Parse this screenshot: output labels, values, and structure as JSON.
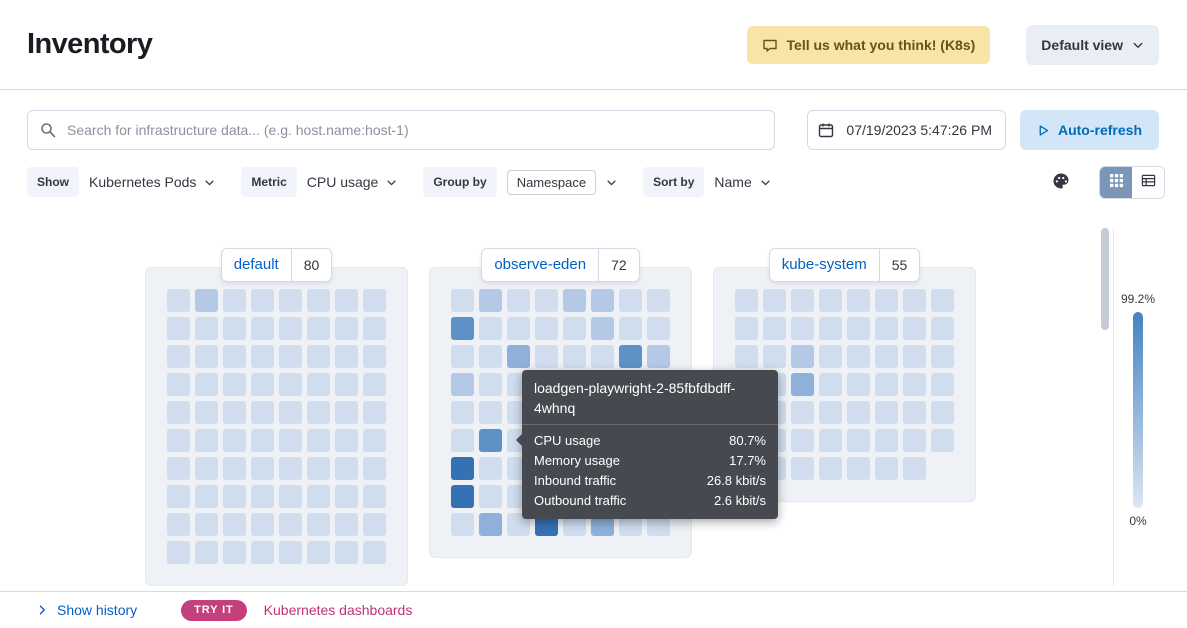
{
  "header": {
    "title": "Inventory",
    "feedback_button": "Tell us what you think! (K8s)",
    "view_button": "Default view"
  },
  "search": {
    "placeholder": "Search for infrastructure data... (e.g. host.name:host-1)",
    "datetime": "07/19/2023 5:47:26 PM",
    "auto_refresh_label": "Auto-refresh"
  },
  "filters": {
    "show_label": "Show",
    "show_value": "Kubernetes Pods",
    "metric_label": "Metric",
    "metric_value": "CPU usage",
    "group_by_label": "Group by",
    "group_by_value": "Namespace",
    "sort_by_label": "Sort by",
    "sort_by_value": "Name"
  },
  "groups": [
    {
      "name": "default",
      "count": 80,
      "cols": 8,
      "shades": [
        "01000000",
        "00000000",
        "00000000",
        "00000000",
        "00000000",
        "00000000",
        "00000000",
        "00000000",
        "00000000",
        "00000000"
      ]
    },
    {
      "name": "observe-eden",
      "count": 72,
      "cols": 8,
      "shades": [
        "01001100",
        "30000100",
        "00200031",
        "10000000",
        "00000000",
        "03000000",
        "40000000",
        "40000000",
        "02040200"
      ]
    },
    {
      "name": "kube-system",
      "count": 55,
      "cols": 8,
      "shades": [
        "00000000",
        "00000000",
        "00100000",
        "00200000",
        "10000000",
        "00000000",
        "0000000"
      ]
    }
  ],
  "tooltip": {
    "title": "loadgen-playwright-2-85fbfdbdff-4whnq",
    "rows": [
      {
        "label": "CPU usage",
        "value": "80.7%"
      },
      {
        "label": "Memory usage",
        "value": "17.7%"
      },
      {
        "label": "Inbound traffic",
        "value": "26.8 kbit/s"
      },
      {
        "label": "Outbound traffic",
        "value": "2.6 kbit/s"
      }
    ]
  },
  "legend": {
    "max_label": "99.2%",
    "min_label": "0%"
  },
  "footer": {
    "show_history": "Show history",
    "try_it": "TRY IT",
    "dashboards_link": "Kubernetes dashboards"
  },
  "icons": {
    "feedback": "speech-bubble",
    "view_dropdown": "chevron-down",
    "search": "magnifier",
    "date": "calendar",
    "auto_refresh": "play",
    "color_options": "palette",
    "view_grid": "grid",
    "view_table": "table",
    "history": "chevron-right"
  },
  "colors": {
    "link_blue": "#0061c5",
    "accent_pink": "#bd337b",
    "badge_pink": "#c4407c",
    "warning_bg": "#f8e4a6",
    "warning_text": "#6a5210",
    "button_gray": "#e9edf4",
    "refresh_bg": "#d3e6f7",
    "refresh_text": "#006bb8",
    "toggle_selected": "#7b96b8",
    "panel_bg": "#eef1f6",
    "border": "#d3dae6",
    "text": "#343741",
    "tooltip_bg": "#46494f",
    "legend_top": "#4382c1",
    "legend_bottom": "#dce7f4",
    "shades": [
      "#cfddef",
      "#b4c9e6",
      "#8fb0d9",
      "#5e92c6",
      "#3571b3"
    ]
  }
}
